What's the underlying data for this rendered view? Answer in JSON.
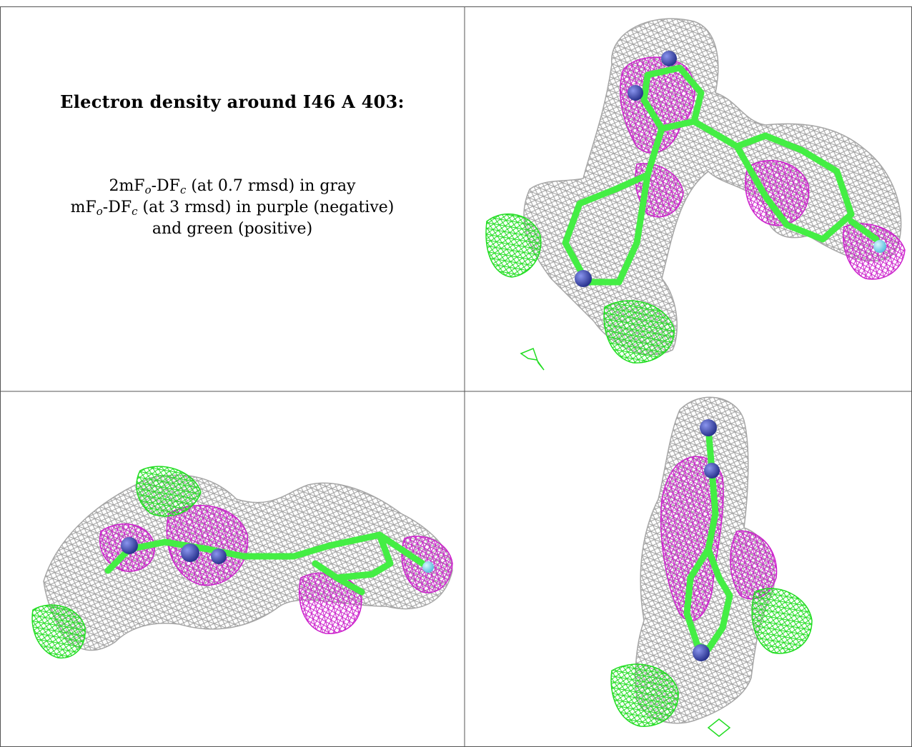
{
  "caption": {
    "title": "Electron density around I46 A 403:",
    "line1": {
      "prefix": "2mF",
      "sub1": "o",
      "mid": "-DF",
      "sub2": "c",
      "suffix": " (at 0.7 rmsd) in gray"
    },
    "line2": {
      "prefix": "mF",
      "sub1": "o",
      "mid": "-DF",
      "sub2": "c",
      "suffix": " (at 3 rmsd) in purple (negative)"
    },
    "line3": "and green (positive)"
  },
  "colors": {
    "map_2fofc": "#9a9a9a",
    "map_fofc_negative": "#cc22cc",
    "map_fofc_positive": "#22dd22",
    "carbon": "#44ee44",
    "nitrogen": "#4455cc",
    "halogen": "#88ddee",
    "frame": "#555555"
  },
  "panels": [
    {
      "view": "view-top-right"
    },
    {
      "view": "view-bottom-left"
    },
    {
      "view": "view-bottom-right"
    }
  ]
}
